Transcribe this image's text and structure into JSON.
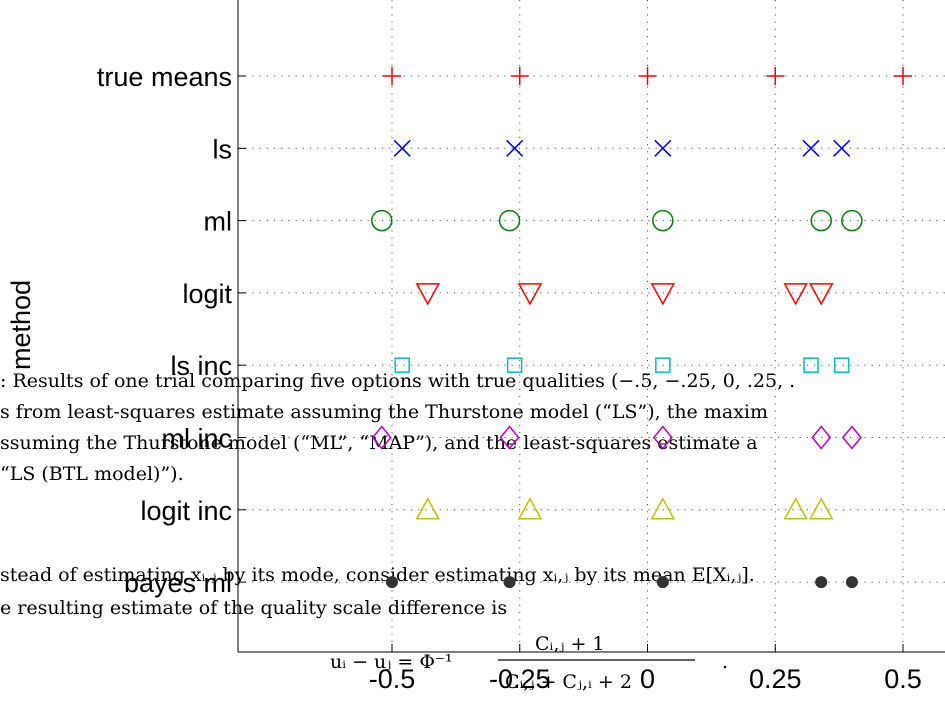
{
  "chart_data": {
    "type": "scatter",
    "title": "",
    "xlabel": "",
    "ylabel": "method",
    "xlim": [
      -0.8,
      0.85
    ],
    "grid": true,
    "x_ticks": [
      -0.5,
      -0.25,
      0,
      0.25,
      0.5
    ],
    "x_tick_labels": [
      "-0.5",
      "-0.25",
      "0",
      "0.25",
      "0.5"
    ],
    "categories": [
      "true means",
      "ls",
      "ml",
      "logit",
      "ls inc",
      "ml inc",
      "logit inc",
      "bayes ml"
    ],
    "series": [
      {
        "category": "true means",
        "marker": "plus",
        "color": "#ff0000",
        "x": [
          -0.5,
          -0.25,
          0,
          0.25,
          0.5
        ]
      },
      {
        "category": "ls",
        "marker": "x",
        "color": "#0000ff",
        "x": [
          -0.48,
          -0.26,
          0.03,
          0.32,
          0.38
        ]
      },
      {
        "category": "ml",
        "marker": "circle",
        "color": "#008000",
        "x": [
          -0.52,
          -0.27,
          0.03,
          0.34,
          0.4
        ]
      },
      {
        "category": "logit",
        "marker": "triangle-down",
        "color": "#ff0000",
        "x": [
          -0.43,
          -0.23,
          0.03,
          0.29,
          0.34
        ]
      },
      {
        "category": "ls inc",
        "marker": "square",
        "color": "#00bfbf",
        "x": [
          -0.48,
          -0.26,
          0.03,
          0.32,
          0.38
        ]
      },
      {
        "category": "ml inc",
        "marker": "diamond",
        "color": "#bf00bf",
        "x": [
          -0.52,
          -0.27,
          0.03,
          0.34,
          0.4
        ]
      },
      {
        "category": "logit inc",
        "marker": "triangle-up",
        "color": "#bfbf00",
        "x": [
          -0.43,
          -0.23,
          0.03,
          0.29,
          0.34
        ]
      },
      {
        "category": "bayes ml",
        "marker": "dot",
        "color": "#333333",
        "x": [
          -0.5,
          -0.27,
          0.03,
          0.34,
          0.4
        ]
      }
    ]
  },
  "overlay_text": {
    "line1": ": Results of one trial comparing five options with true qualities (−.5, −.25, 0, .25, .",
    "line2": "s from least-squares estimate assuming the Thurstone model (“LS”), the maxim",
    "line3": "ssuming the Thurstone model (“ML”, “MAP”), and the least-squares estimate a",
    "line4": "“LS (BTL model)”).",
    "line5": "stead of estimating xᵢ,ⱼ by its mode, consider estimating xᵢ,ⱼ by its mean E[Xᵢ,ⱼ].",
    "line6": "e resulting estimate of the quality scale difference is",
    "formula_lhs": "uᵢ − uⱼ = Φ⁻¹",
    "formula_num": "Cᵢ,ⱼ + 1",
    "formula_den": "Cᵢ,ⱼ + Cⱼ,ᵢ + 2",
    "formula_end": "."
  }
}
